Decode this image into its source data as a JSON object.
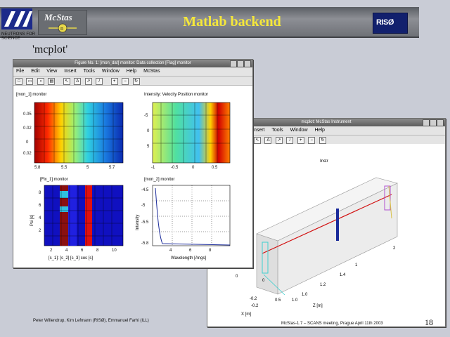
{
  "header": {
    "logo_text": "NEUTRONS FOR SCIENCE",
    "mcstas_label": "McStas",
    "title": "Matlab backend",
    "riso_label": "RISØ"
  },
  "subtitle": "'mcplot'",
  "window_main": {
    "title": "Figure No. 1: [mon_dat] monitor: Data collection [Flag] monitor",
    "menu": [
      "File",
      "Edit",
      "View",
      "Insert",
      "Tools",
      "Window",
      "Help",
      "McStas"
    ],
    "plot_titles": [
      "[mon_1] monitor",
      "Intensity: Velocity Position monitor",
      "[Fix_1] monitor",
      "[mon_2] monitor"
    ],
    "subplot3_xlabel": "[s_1]: [s_2] [s_3] cos [s]",
    "subplot3_ylabel": "Psi [s]",
    "subplot4_xlabel": "Wavelength [Angs]",
    "subplot4_ylabel": "Intensity"
  },
  "window_secondary": {
    "title": "mcplot: McStas Instrument",
    "menu": [
      "Insert",
      "Tools",
      "Window",
      "Help"
    ],
    "plot_title": "Instr",
    "axis_x": "Z [m]",
    "axis_y": "X [m]"
  },
  "footer": {
    "authors": "Peter Willendrup, Kim Lefmann (RISØ), Emmanuel Farhi (ILL)",
    "event": "McStas-1.7 – SCANS meeting, Prague April 11th 2003",
    "page": "18"
  },
  "colors": {
    "title_yellow": "#f6e83a",
    "riso_blue": "#12206d",
    "trace_red": "#d21010"
  }
}
